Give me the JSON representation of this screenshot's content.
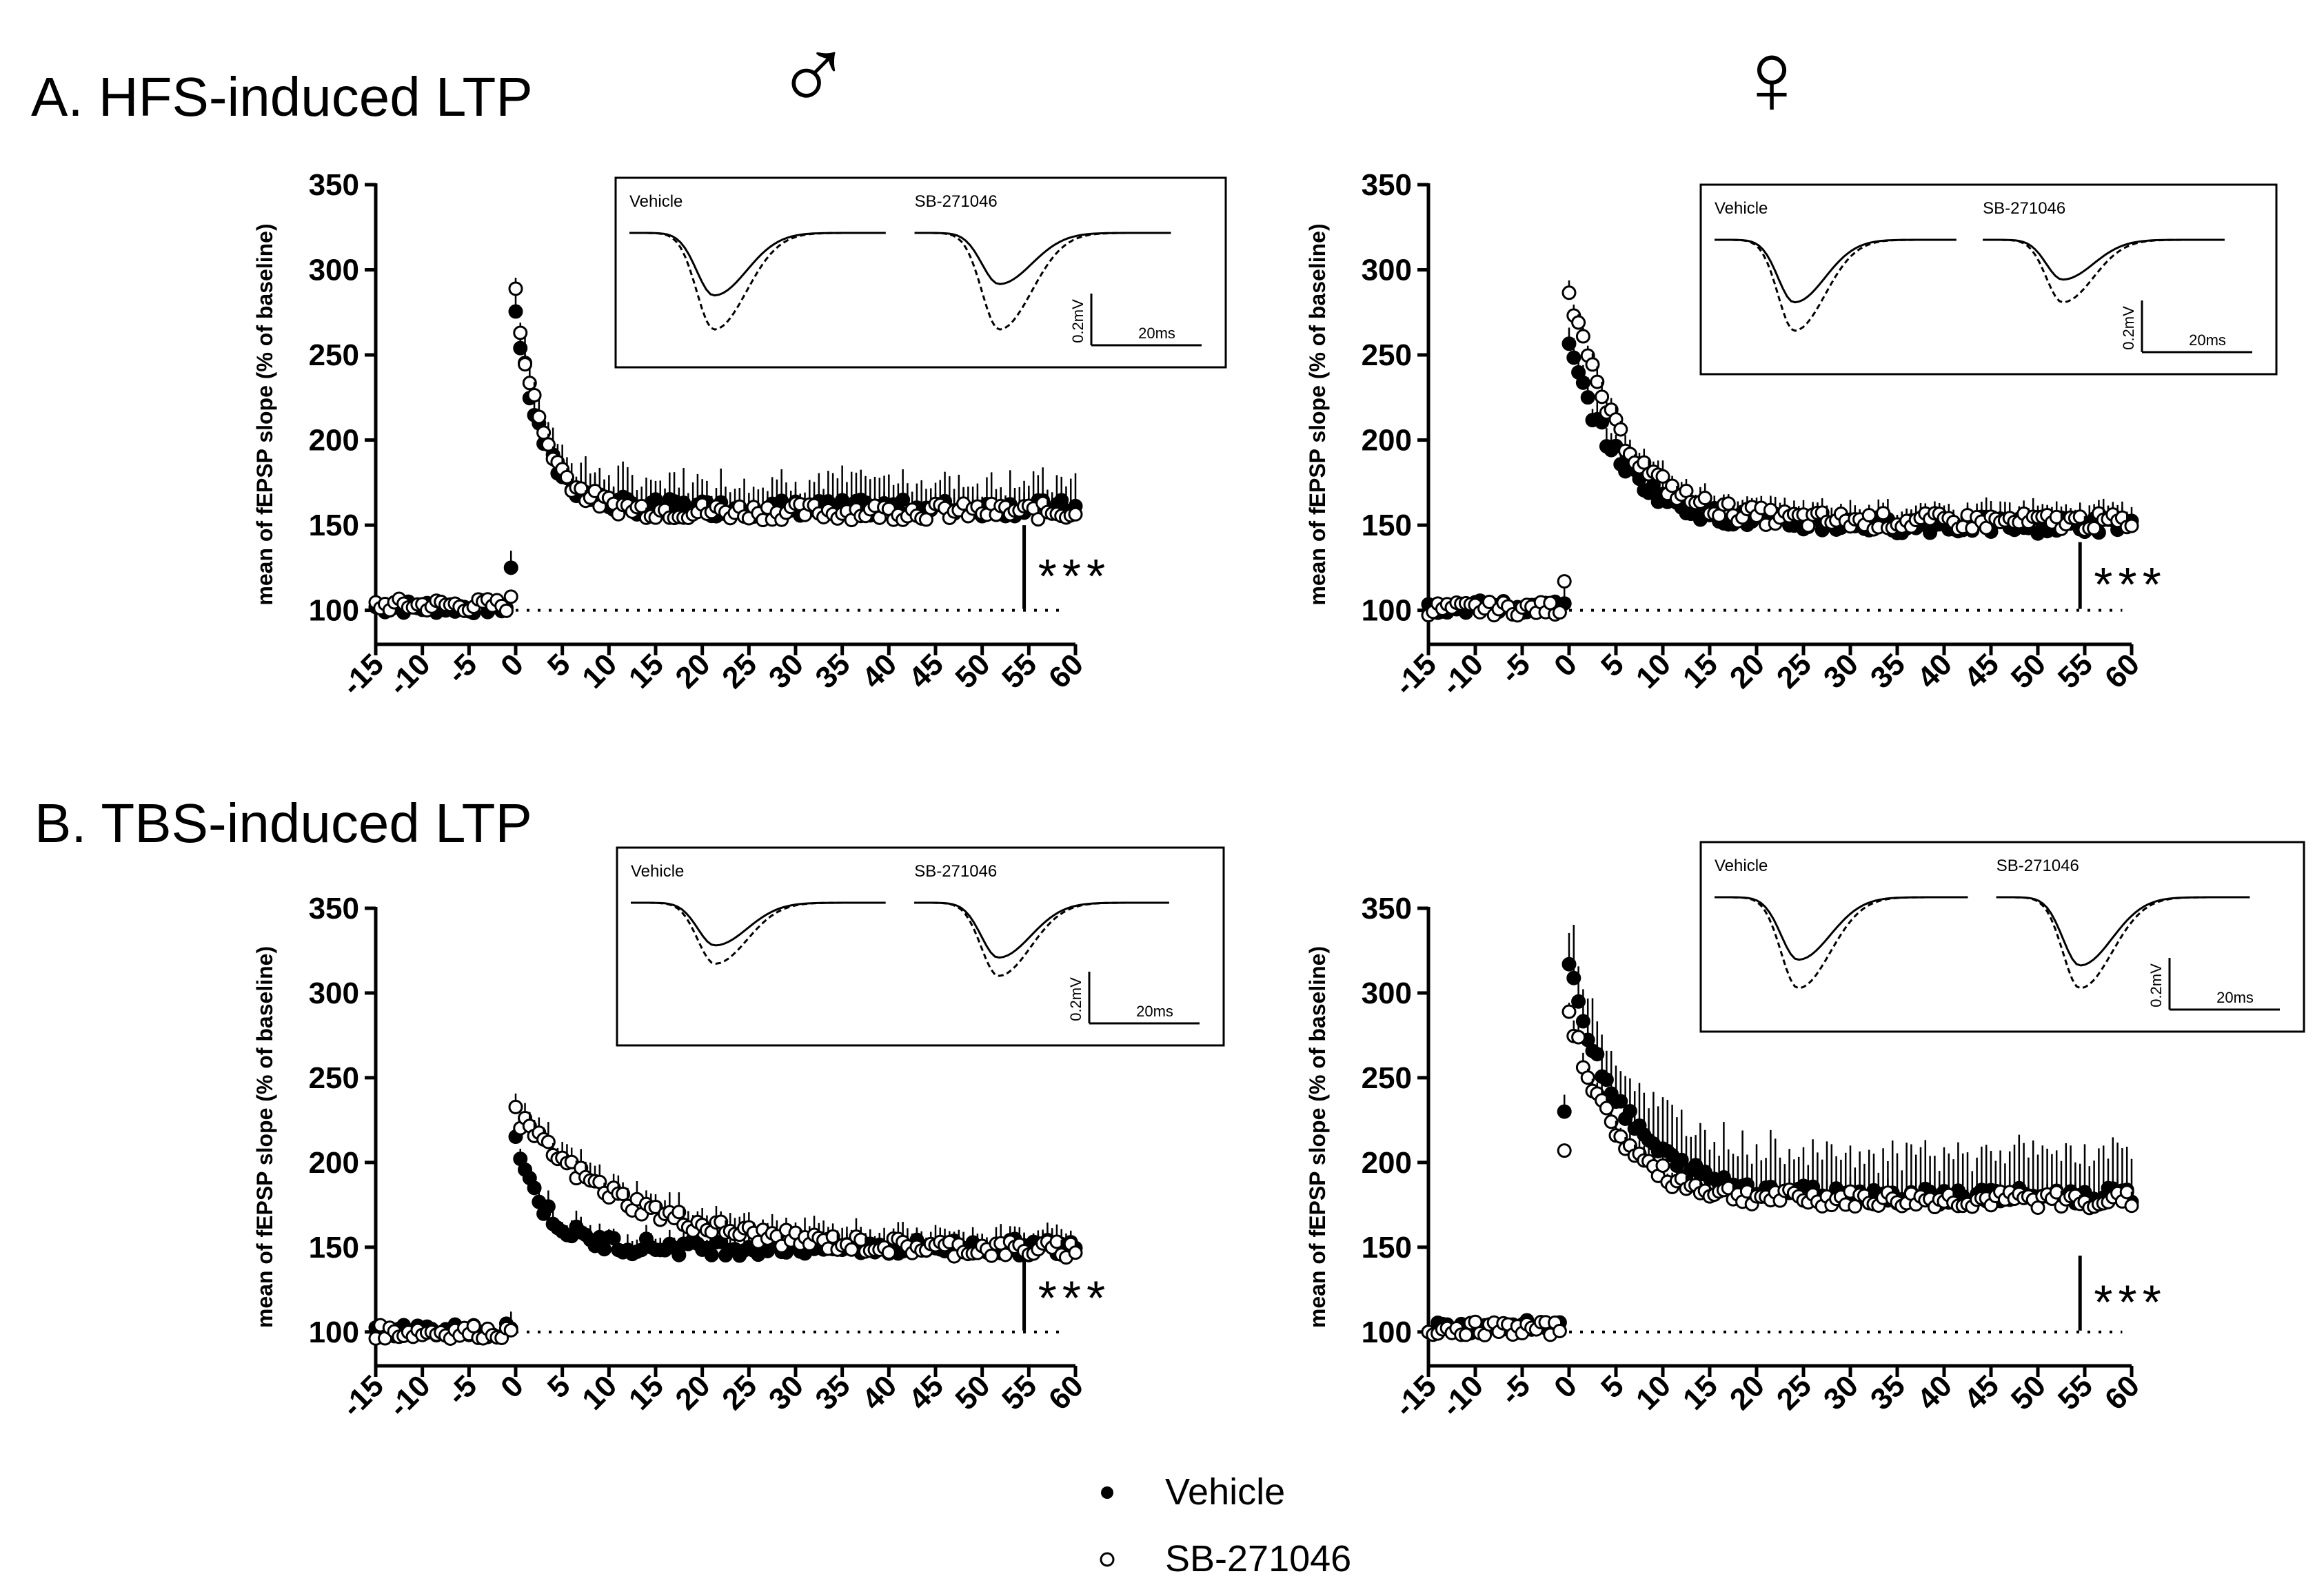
{
  "figure": {
    "sex_male_symbol": "♂",
    "sex_female_symbol": "♀",
    "legend": {
      "vehicle": {
        "marker": "●",
        "label": "Vehicle"
      },
      "sb": {
        "marker": "○",
        "label": "SB-271046"
      }
    },
    "colors": {
      "vehicle_fill": "#000000",
      "sb_fill": "#ffffff",
      "line": "#000000"
    }
  },
  "chart_data": [
    {
      "id": "A-male",
      "section_title": "A. HFS-induced LTP",
      "type": "scatter",
      "ylabel": "mean of fEPSP slope (% of baseline)",
      "xlim": [
        -15,
        60
      ],
      "ylim": [
        80,
        350
      ],
      "xticks": [
        "-15",
        "-10",
        "-5",
        "0",
        "5",
        "10",
        "15",
        "20",
        "25",
        "30",
        "35",
        "40",
        "45",
        "50",
        "55",
        "60"
      ],
      "yticks": [
        "100",
        "150",
        "200",
        "250",
        "300",
        "350"
      ],
      "baseline": 100,
      "significance": "***",
      "inset": {
        "left_label": "Vehicle",
        "right_label": "SB-271046",
        "scale_v": "0.2mV",
        "scale_t": "20ms",
        "veh_solid_depth": 0.55,
        "veh_dashed_depth": 0.85,
        "sb_solid_depth": 0.45,
        "sb_dashed_depth": 0.85
      },
      "series": [
        {
          "name": "Vehicle",
          "baseline_value": 102,
          "post_peak": 275,
          "post_plateau": 160,
          "tau": 2.8,
          "err": 18,
          "pre_spike": 125
        },
        {
          "name": "SB-271046",
          "baseline_value": 103,
          "post_peak": 285,
          "post_plateau": 158,
          "tau": 3.0,
          "err": 8,
          "pre_spike": 108
        }
      ]
    },
    {
      "id": "A-female",
      "type": "scatter",
      "ylabel": "mean of fEPSP slope (% of baseline)",
      "xlim": [
        -15,
        60
      ],
      "ylim": [
        80,
        350
      ],
      "xticks": [
        "-15",
        "-10",
        "-5",
        "0",
        "5",
        "10",
        "15",
        "20",
        "25",
        "30",
        "35",
        "40",
        "45",
        "50",
        "55",
        "60"
      ],
      "yticks": [
        "100",
        "150",
        "200",
        "250",
        "300",
        "350"
      ],
      "baseline": 100,
      "significance": "***",
      "inset": {
        "left_label": "Vehicle",
        "right_label": "SB-271046",
        "scale_v": "0.2mV",
        "scale_t": "20ms",
        "veh_solid_depth": 0.55,
        "veh_dashed_depth": 0.8,
        "sb_solid_depth": 0.35,
        "sb_dashed_depth": 0.55
      },
      "series": [
        {
          "name": "Vehicle",
          "baseline_value": 102,
          "post_peak": 255,
          "post_plateau": 150,
          "tau": 5.5,
          "err": 10,
          "pre_spike": 104
        },
        {
          "name": "SB-271046",
          "baseline_value": 101,
          "post_peak": 290,
          "post_plateau": 152,
          "tau": 5.5,
          "err": 8,
          "pre_spike": 117
        }
      ]
    },
    {
      "id": "B-male",
      "section_title": "B. TBS-induced LTP",
      "type": "scatter",
      "ylabel": "mean of fEPSP slope (% of baseline)",
      "xlim": [
        -15,
        60
      ],
      "ylim": [
        80,
        350
      ],
      "xticks": [
        "-15",
        "-10",
        "-5",
        "0",
        "5",
        "10",
        "15",
        "20",
        "25",
        "30",
        "35",
        "40",
        "45",
        "50",
        "55",
        "60"
      ],
      "yticks": [
        "100",
        "150",
        "200",
        "250",
        "300",
        "350"
      ],
      "baseline": 100,
      "significance": "***",
      "inset": {
        "left_label": "Vehicle",
        "right_label": "SB-271046",
        "scale_v": "0.2mV",
        "scale_t": "20ms",
        "veh_solid_depth": 0.35,
        "veh_dashed_depth": 0.5,
        "sb_solid_depth": 0.45,
        "sb_dashed_depth": 0.6
      },
      "series": [
        {
          "name": "Vehicle",
          "baseline_value": 101,
          "post_peak": 215,
          "post_plateau": 150,
          "tau": 3.0,
          "err": 8,
          "pre_spike": 102
        },
        {
          "name": "SB-271046",
          "baseline_value": 100,
          "post_peak": 228,
          "post_plateau": 148,
          "tau": 12.0,
          "err": 10,
          "pre_spike": 101
        }
      ]
    },
    {
      "id": "B-female",
      "type": "scatter",
      "ylabel": "mean of fEPSP slope (% of baseline)",
      "xlim": [
        -15,
        60
      ],
      "ylim": [
        80,
        350
      ],
      "xticks": [
        "-15",
        "-10",
        "-5",
        "0",
        "5",
        "10",
        "15",
        "20",
        "25",
        "30",
        "35",
        "40",
        "45",
        "50",
        "55",
        "60"
      ],
      "yticks": [
        "100",
        "150",
        "200",
        "250",
        "300",
        "350"
      ],
      "baseline": 100,
      "significance": "***",
      "inset": {
        "left_label": "Vehicle",
        "right_label": "SB-271046",
        "scale_v": "0.2mV",
        "scale_t": "20ms",
        "veh_solid_depth": 0.55,
        "veh_dashed_depth": 0.8,
        "sb_solid_depth": 0.6,
        "sb_dashed_depth": 0.8
      },
      "series": [
        {
          "name": "Vehicle",
          "baseline_value": 103,
          "post_peak": 315,
          "post_plateau": 180,
          "tau": 6.0,
          "err": 28,
          "pre_spike": 230
        },
        {
          "name": "SB-271046",
          "baseline_value": 102,
          "post_peak": 290,
          "post_plateau": 178,
          "tau": 5.0,
          "err": 8,
          "pre_spike": 207
        }
      ]
    }
  ]
}
